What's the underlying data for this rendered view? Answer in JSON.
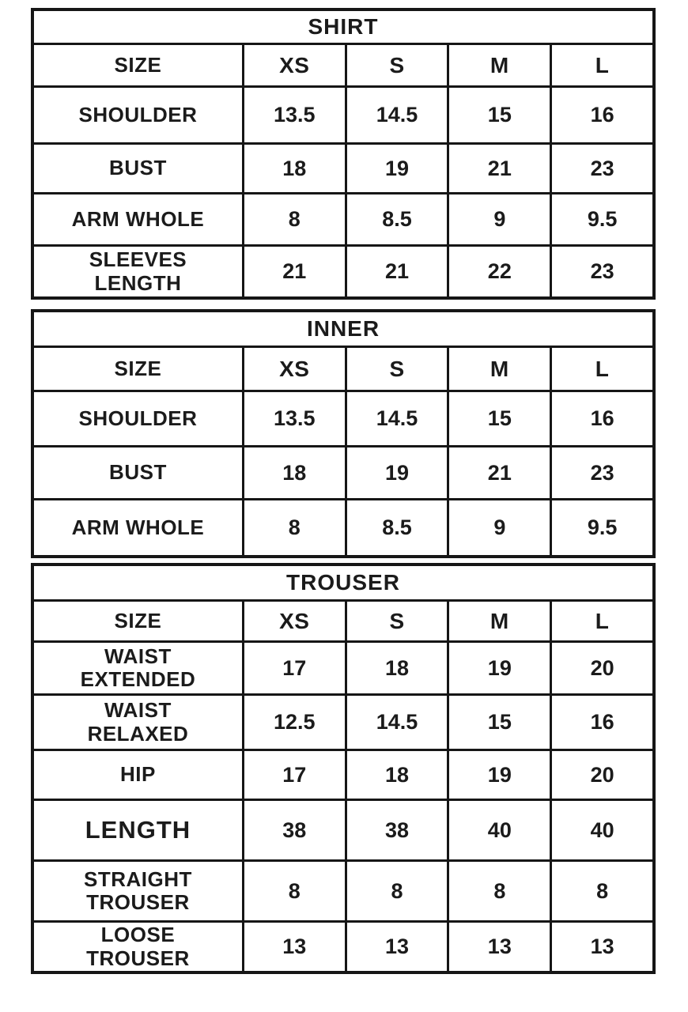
{
  "page": {
    "background_color": "#ffffff",
    "text_color": "#1b1b1b",
    "border_color": "#161616"
  },
  "tables": [
    {
      "title": "SHIRT",
      "size_label": "SIZE",
      "sizes": [
        "XS",
        "S",
        "M",
        "L"
      ],
      "rows": [
        {
          "label": "SHOULDER",
          "values": [
            "13.5",
            "14.5",
            "15",
            "16"
          ]
        },
        {
          "label": "BUST",
          "values": [
            "18",
            "19",
            "21",
            "23"
          ]
        },
        {
          "label": "ARM WHOLE",
          "values": [
            "8",
            "8.5",
            "9",
            "9.5"
          ]
        },
        {
          "label": "SLEEVES LENGTH",
          "values": [
            "21",
            "21",
            "22",
            "23"
          ]
        }
      ]
    },
    {
      "title": "INNER",
      "size_label": "SIZE",
      "sizes": [
        "XS",
        "S",
        "M",
        "L"
      ],
      "rows": [
        {
          "label": "SHOULDER",
          "values": [
            "13.5",
            "14.5",
            "15",
            "16"
          ]
        },
        {
          "label": "BUST",
          "values": [
            "18",
            "19",
            "21",
            "23"
          ]
        },
        {
          "label": "ARM WHOLE",
          "values": [
            "8",
            "8.5",
            "9",
            "9.5"
          ]
        }
      ]
    },
    {
      "title": "TROUSER",
      "size_label": "SIZE",
      "sizes": [
        "XS",
        "S",
        "M",
        "L"
      ],
      "rows": [
        {
          "label": "WAIST EXTENDED",
          "values": [
            "17",
            "18",
            "19",
            "20"
          ]
        },
        {
          "label": "WAIST RELAXED",
          "values": [
            "12.5",
            "14.5",
            "15",
            "16"
          ]
        },
        {
          "label": "HIP",
          "values": [
            "17",
            "18",
            "19",
            "20"
          ]
        },
        {
          "label": "LENGTH",
          "values": [
            "38",
            "38",
            "40",
            "40"
          ]
        },
        {
          "label": "STRAIGHT TROUSER",
          "values": [
            "8",
            "8",
            "8",
            "8"
          ]
        },
        {
          "label": "LOOSE TROUSER",
          "values": [
            "13",
            "13",
            "13",
            "13"
          ]
        }
      ]
    }
  ]
}
